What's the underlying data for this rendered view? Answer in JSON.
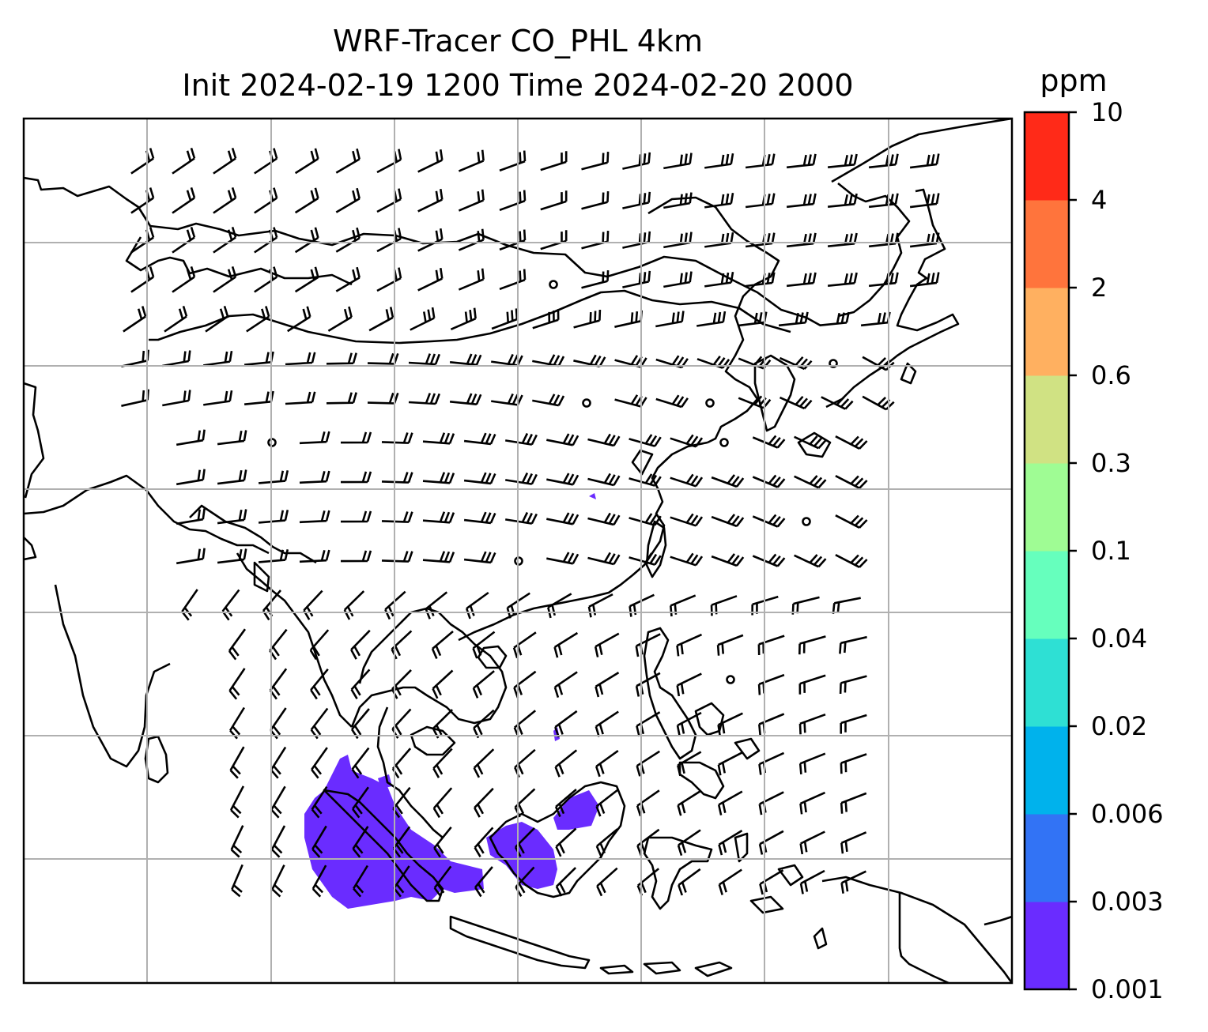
{
  "title": {
    "line1": "WRF-Tracer CO_PHL 4km",
    "line2": "Init 2024-02-19 1200 Time 2024-02-20 2000"
  },
  "colorbar": {
    "unit": "ppm",
    "levels": [
      "0.001",
      "0.003",
      "0.006",
      "0.02",
      "0.04",
      "0.1",
      "0.3",
      "0.6",
      "2",
      "4",
      "10"
    ],
    "colors": [
      "#6a2cff",
      "#3273f5",
      "#00b2ec",
      "#2ee0d4",
      "#66ffbd",
      "#9ffc94",
      "#d0e283",
      "#ffb060",
      "#ff743c",
      "#ff2a18"
    ]
  },
  "map": {
    "gridlines": true,
    "grid_color": "#b0b0b0",
    "coastline_color": "#000000",
    "plume_color": "#6a2cff",
    "features": [
      "coastlines",
      "wind-barbs",
      "co-tracer-plume"
    ]
  }
}
